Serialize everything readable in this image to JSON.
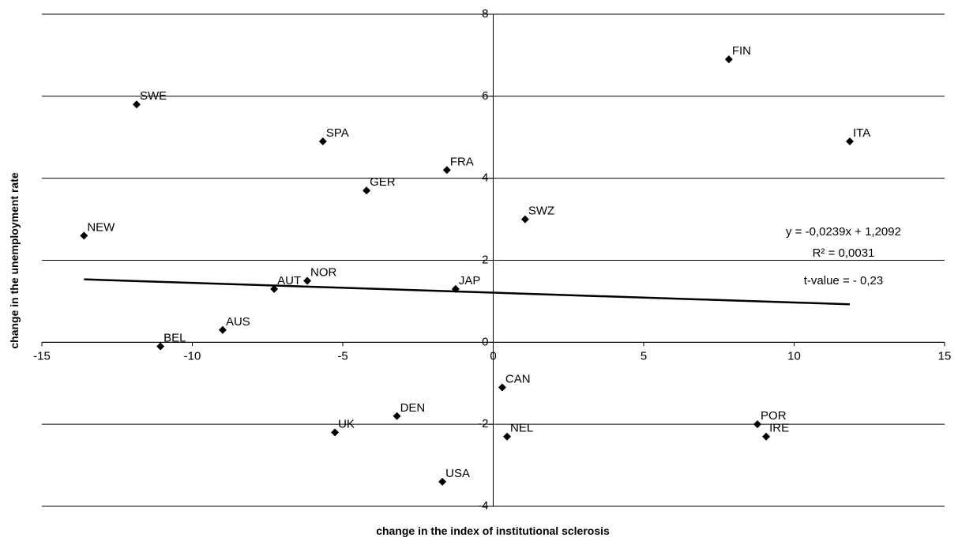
{
  "chart_data": {
    "type": "scatter",
    "x_label": "change in the index of institutional sclerosis",
    "y_label": "change in the unemployment rate",
    "labels": [
      "SWE",
      "SPA",
      "FRA",
      "GER",
      "NEW",
      "SWZ",
      "FIN",
      "ITA",
      "AUT",
      "NOR",
      "JAP",
      "AUS",
      "BEL",
      "CAN",
      "DEN",
      "UK",
      "NEL",
      "POR",
      "IRE",
      "USA"
    ],
    "x": [
      -11.85,
      -5.66,
      -1.54,
      -4.21,
      -13.6,
      1.06,
      7.83,
      11.85,
      -7.28,
      -6.18,
      -1.25,
      -8.99,
      -11.06,
      0.3,
      -3.2,
      -5.26,
      0.46,
      8.78,
      9.07,
      -1.69
    ],
    "y": [
      5.8,
      4.9,
      4.2,
      3.7,
      2.6,
      3.0,
      6.9,
      4.9,
      1.3,
      1.5,
      1.3,
      0.3,
      -0.1,
      -1.1,
      -1.8,
      -2.2,
      -2.3,
      -2.0,
      -2.3,
      -3.4
    ],
    "color": "#000000",
    "xlim": [
      -15,
      15
    ],
    "xticks": [
      -15,
      -10,
      -5,
      0,
      5,
      10,
      15
    ],
    "ylim": [
      -4,
      8
    ],
    "yticks": [
      -4,
      -2,
      0,
      2,
      4,
      6,
      8
    ],
    "grid": true,
    "trendline": {
      "slope": -0.0239,
      "intercept": 1.2092,
      "equation": "y = -0,0239x + 1,2092",
      "r2": "R² = 0,0031",
      "t_value": "t-value = - 0,23"
    }
  }
}
